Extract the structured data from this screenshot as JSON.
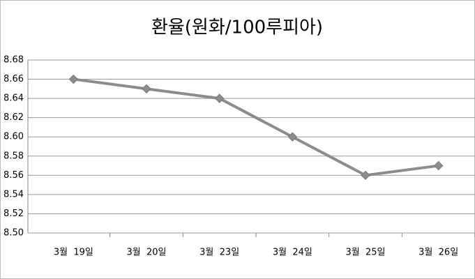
{
  "chart_data": {
    "type": "line",
    "title": "환율(원화/100루피아)",
    "categories": [
      "3월  19일",
      "3월  20일",
      "3월  23일",
      "3월  24일",
      "3월  25일",
      "3월  26일"
    ],
    "series": [
      {
        "name": "환율",
        "color": "#8c8c8c",
        "values": [
          8.66,
          8.65,
          8.64,
          8.6,
          8.56,
          8.57
        ]
      }
    ],
    "ylim": [
      8.5,
      8.68
    ],
    "yticks": [
      {
        "value": 8.5,
        "label": "8.50"
      },
      {
        "value": 8.52,
        "label": "8.52"
      },
      {
        "value": 8.54,
        "label": "8.54"
      },
      {
        "value": 8.56,
        "label": "8.56"
      },
      {
        "value": 8.58,
        "label": "8.58"
      },
      {
        "value": 8.6,
        "label": "8.60"
      },
      {
        "value": 8.62,
        "label": "8.62"
      },
      {
        "value": 8.64,
        "label": "8.64"
      },
      {
        "value": 8.66,
        "label": "8.66"
      },
      {
        "value": 8.68,
        "label": "8.68"
      }
    ],
    "grid": true
  }
}
